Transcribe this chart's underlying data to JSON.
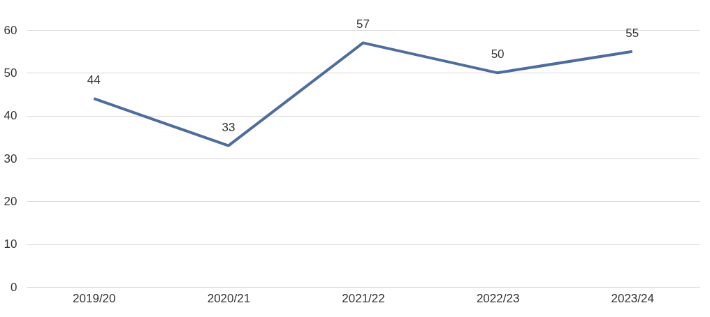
{
  "chart_data": {
    "type": "line",
    "categories": [
      "2019/20",
      "2020/21",
      "2021/22",
      "2022/23",
      "2023/24"
    ],
    "series": [
      {
        "color": "#4f6d9c",
        "values": [
          44,
          33,
          57,
          50,
          55
        ]
      }
    ],
    "ylim": [
      0,
      60
    ],
    "yticks": [
      0,
      10,
      20,
      30,
      40,
      50,
      60
    ],
    "grid": "y",
    "data_labels": true,
    "marker": "none",
    "line_style": "solid"
  }
}
